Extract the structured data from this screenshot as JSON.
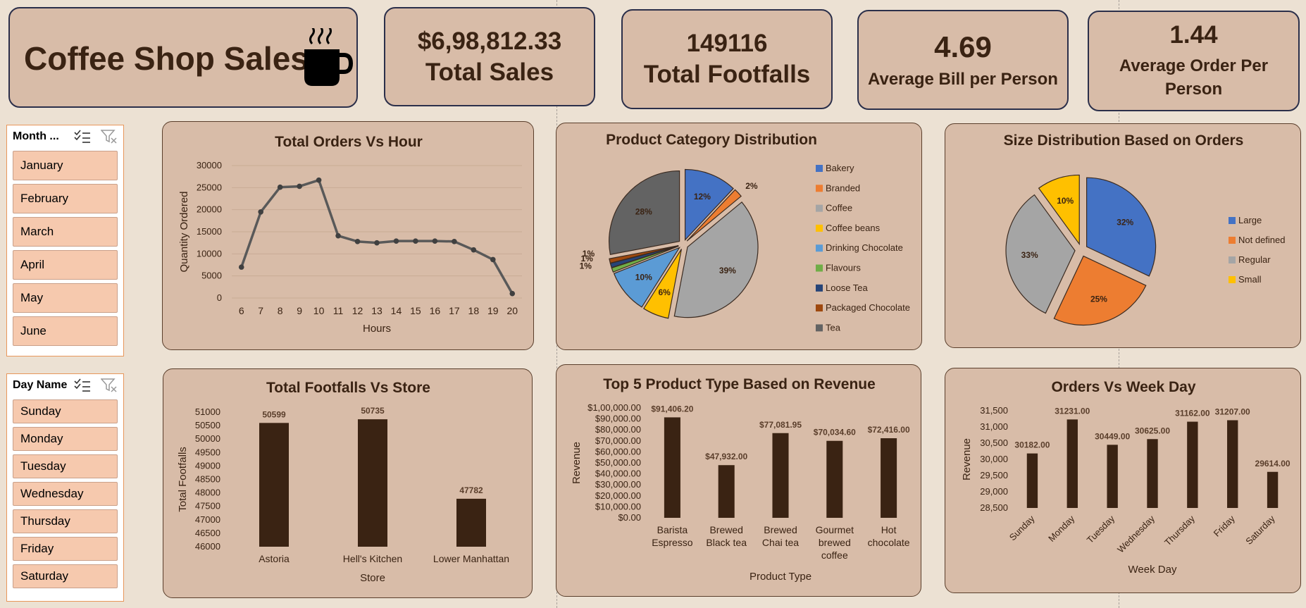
{
  "header": {
    "title": "Coffee Shop Sales"
  },
  "kpis": {
    "total_sales_value": "$6,98,812.33",
    "total_sales_label": "Total Sales",
    "footfalls_value": "149116",
    "footfalls_label": "Total Footfalls",
    "avg_bill_value": "4.69",
    "avg_bill_label": "Average Bill per Person",
    "avg_order_value": "1.44",
    "avg_order_label": "Average Order Per Person"
  },
  "slicers": {
    "month": {
      "title": "Month ...",
      "items": [
        "January",
        "February",
        "March",
        "April",
        "May",
        "June"
      ]
    },
    "day": {
      "title": "Day Name",
      "items": [
        "Sunday",
        "Monday",
        "Tuesday",
        "Wednesday",
        "Thursday",
        "Friday",
        "Saturday"
      ]
    }
  },
  "chart_data": [
    {
      "type": "line",
      "title": "Total Orders Vs Hour",
      "xlabel": "Hours",
      "ylabel": "Quantity Ordered",
      "x": [
        6,
        7,
        8,
        9,
        10,
        11,
        12,
        13,
        14,
        15,
        16,
        17,
        18,
        19,
        20
      ],
      "values": [
        7000,
        19500,
        25100,
        25300,
        26700,
        14100,
        12800,
        12500,
        12900,
        12900,
        12900,
        12800,
        10900,
        8700,
        1000
      ],
      "ylim": [
        0,
        30000
      ],
      "yticks": [
        0,
        5000,
        10000,
        15000,
        20000,
        25000,
        30000
      ],
      "grid": true
    },
    {
      "type": "pie",
      "title": "Product Category Distribution",
      "categories": [
        "Bakery",
        "Branded",
        "Coffee",
        "Coffee beans",
        "Drinking Chocolate",
        "Flavours",
        "Loose Tea",
        "Packaged Chocolate",
        "Tea"
      ],
      "values": [
        12,
        2,
        39,
        6,
        10,
        1,
        1,
        1,
        28
      ],
      "labels": [
        "12%",
        "2%",
        "39%",
        "6%",
        "10%",
        "1%",
        "1%",
        "1%",
        "28%"
      ],
      "colors": [
        "#4472c4",
        "#ed7d31",
        "#a5a5a5",
        "#ffc000",
        "#5b9bd5",
        "#70ad47",
        "#264478",
        "#9e480e",
        "#636363"
      ],
      "legend": "right"
    },
    {
      "type": "pie",
      "title": "Size Distribution Based on Orders",
      "categories": [
        "Large",
        "Not defined",
        "Regular",
        "Small"
      ],
      "values": [
        32,
        25,
        33,
        10
      ],
      "labels": [
        "32%",
        "25%",
        "33%",
        "10%"
      ],
      "colors": [
        "#4472c4",
        "#ed7d31",
        "#a5a5a5",
        "#ffc000"
      ],
      "legend": "right"
    },
    {
      "type": "bar",
      "title": "Total Footfalls Vs Store",
      "xlabel": "Store",
      "ylabel": "Total Footfalls",
      "categories": [
        "Astoria",
        "Hell's Kitchen",
        "Lower Manhattan"
      ],
      "values": [
        50599,
        50735,
        47782
      ],
      "labels": [
        "50599",
        "50735",
        "47782"
      ],
      "ylim": [
        46000,
        51000
      ],
      "yticks": [
        "46000",
        "46500",
        "47000",
        "47500",
        "48000",
        "48500",
        "49000",
        "49500",
        "50000",
        "50500",
        "51000"
      ],
      "color": "#3a2313"
    },
    {
      "type": "bar",
      "title": "Top 5 Product Type Based on Revenue",
      "xlabel": "Product Type",
      "ylabel": "Revenue",
      "categories": [
        [
          "Barista",
          "Espresso"
        ],
        [
          "Brewed",
          "Black tea"
        ],
        [
          "Brewed",
          "Chai tea"
        ],
        [
          "Gourmet",
          "brewed",
          "coffee"
        ],
        [
          "Hot",
          "chocolate"
        ]
      ],
      "values": [
        91406.2,
        47932.0,
        77081.95,
        70034.6,
        72416.0
      ],
      "labels": [
        "$91,406.20",
        "$47,932.00",
        "$77,081.95",
        "$70,034.60",
        "$72,416.00"
      ],
      "ylim": [
        0,
        100000
      ],
      "yticks": [
        "$0.00",
        "$10,000.00",
        "$20,000.00",
        "$30,000.00",
        "$40,000.00",
        "$50,000.00",
        "$60,000.00",
        "$70,000.00",
        "$80,000.00",
        "$90,000.00",
        "$1,00,000.00"
      ],
      "color": "#3a2313"
    },
    {
      "type": "bar",
      "title": "Orders Vs Week Day",
      "xlabel": "Week Day",
      "ylabel": "Revenue",
      "categories": [
        "Sunday",
        "Monday",
        "Tuesday",
        "Wednesday",
        "Thursday",
        "Friday",
        "Saturday"
      ],
      "values": [
        30182,
        31231,
        30449,
        30625,
        31162,
        31207,
        29614
      ],
      "labels": [
        "30182.00",
        "31231.00",
        "30449.00",
        "30625.00",
        "31162.00",
        "31207.00",
        "29614.00"
      ],
      "ylim": [
        28500,
        31500
      ],
      "yticks": [
        "28,500",
        "29,000",
        "29,500",
        "30,000",
        "30,500",
        "31,000",
        "31,500"
      ],
      "color": "#3a2313"
    }
  ]
}
